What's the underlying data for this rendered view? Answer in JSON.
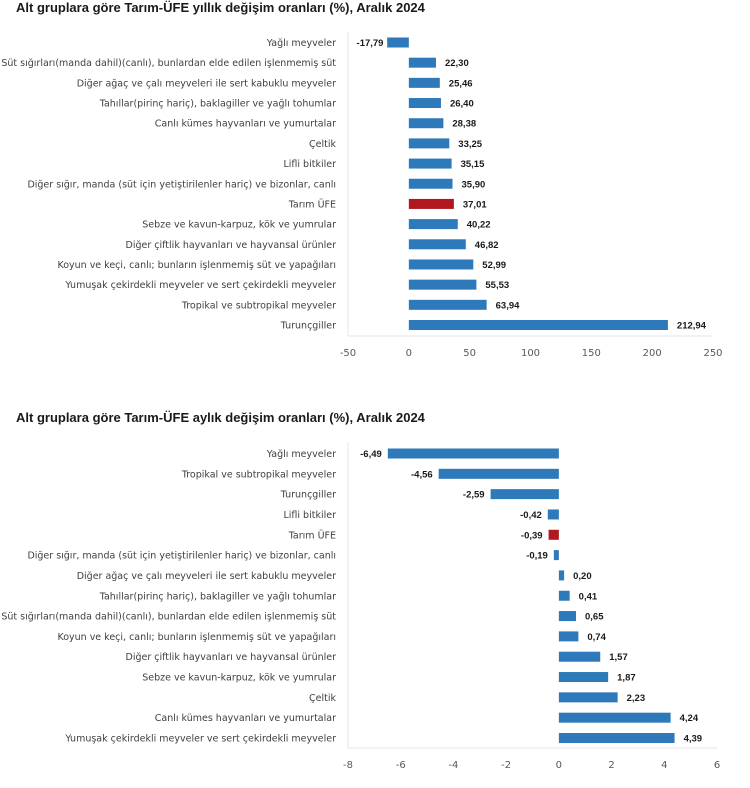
{
  "colors": {
    "bar": "#2e79b9",
    "highlight": "#b0171f",
    "axis": "#e6e6e6"
  },
  "chart_data": [
    {
      "type": "bar",
      "orientation": "horizontal",
      "title": "Alt gruplara göre Tarım-ÜFE yıllık değişim oranları (%), Aralık 2024",
      "xlabel": "",
      "ylabel": "",
      "xlim": [
        -50,
        250
      ],
      "xticks": [
        -50,
        0,
        50,
        100,
        150,
        200,
        250
      ],
      "xtick_labels": [
        "-50",
        "0",
        "50",
        "100",
        "150",
        "200",
        "250"
      ],
      "grid": false,
      "legend": "none",
      "highlight_category": "Tarım ÜFE",
      "categories": [
        "Yağlı meyveler",
        "Süt sığırları(manda dahil)(canlı), bunlardan elde edilen işlenmemiş süt",
        "Diğer ağaç ve çalı meyveleri ile sert kabuklu meyveler",
        "Tahıllar(pirinç hariç), baklagiller ve yağlı tohumlar",
        "Canlı kümes hayvanları ve yumurtalar",
        "Çeltik",
        "Lifli bitkiler",
        "Diğer sığır, manda (süt için yetiştirilenler hariç) ve bizonlar, canlı",
        "Tarım ÜFE",
        "Sebze ve kavun-karpuz, kök ve yumrular",
        "Diğer çiftlik hayvanları ve hayvansal ürünler",
        "Koyun ve keçi, canlı; bunların işlenmemiş süt ve yapağıları",
        "Yumuşak çekirdekli meyveler ve sert çekirdekli meyveler",
        "Tropikal ve subtropikal meyveler",
        "Turunçgiller"
      ],
      "values": [
        -17.79,
        22.3,
        25.46,
        26.4,
        28.38,
        33.25,
        35.15,
        35.9,
        37.01,
        40.22,
        46.82,
        52.99,
        55.53,
        63.94,
        212.94
      ],
      "value_labels": [
        "-17,79",
        "22,30",
        "25,46",
        "26,40",
        "28,38",
        "33,25",
        "35,15",
        "35,90",
        "37,01",
        "40,22",
        "46,82",
        "52,99",
        "55,53",
        "63,94",
        "212,94"
      ]
    },
    {
      "type": "bar",
      "orientation": "horizontal",
      "title": "Alt gruplara göre Tarım-ÜFE aylık değişim oranları (%), Aralık 2024",
      "xlabel": "",
      "ylabel": "",
      "xlim": [
        -8,
        6
      ],
      "xticks": [
        -8,
        -6,
        -4,
        -2,
        0,
        2,
        4,
        6
      ],
      "xtick_labels": [
        "-8",
        "-6",
        "-4",
        "-2",
        "0",
        "2",
        "4",
        "6"
      ],
      "grid": false,
      "legend": "none",
      "highlight_category": "Tarım ÜFE",
      "categories": [
        "Yağlı meyveler",
        "Tropikal ve subtropikal meyveler",
        "Turunçgiller",
        "Lifli bitkiler",
        "Tarım ÜFE",
        "Diğer sığır, manda (süt için yetiştirilenler hariç) ve bizonlar, canlı",
        "Diğer ağaç ve çalı meyveleri ile sert kabuklu meyveler",
        "Tahıllar(pirinç hariç), baklagiller ve yağlı tohumlar",
        "Süt sığırları(manda dahil)(canlı), bunlardan elde edilen işlenmemiş süt",
        "Koyun ve keçi, canlı; bunların işlenmemiş süt ve yapağıları",
        "Diğer çiftlik hayvanları ve hayvansal ürünler",
        "Sebze ve kavun-karpuz, kök ve yumrular",
        "Çeltik",
        "Canlı kümes hayvanları ve yumurtalar",
        "Yumuşak çekirdekli meyveler ve sert çekirdekli meyveler"
      ],
      "values": [
        -6.49,
        -4.56,
        -2.59,
        -0.42,
        -0.39,
        -0.19,
        0.2,
        0.41,
        0.65,
        0.74,
        1.57,
        1.87,
        2.23,
        4.24,
        4.39
      ],
      "value_labels": [
        "-6,49",
        "-4,56",
        "-2,59",
        "-0,42",
        "-0,39",
        "-0,19",
        "0,20",
        "0,41",
        "0,65",
        "0,74",
        "1,57",
        "1,87",
        "2,23",
        "4,24",
        "4,39"
      ]
    }
  ]
}
